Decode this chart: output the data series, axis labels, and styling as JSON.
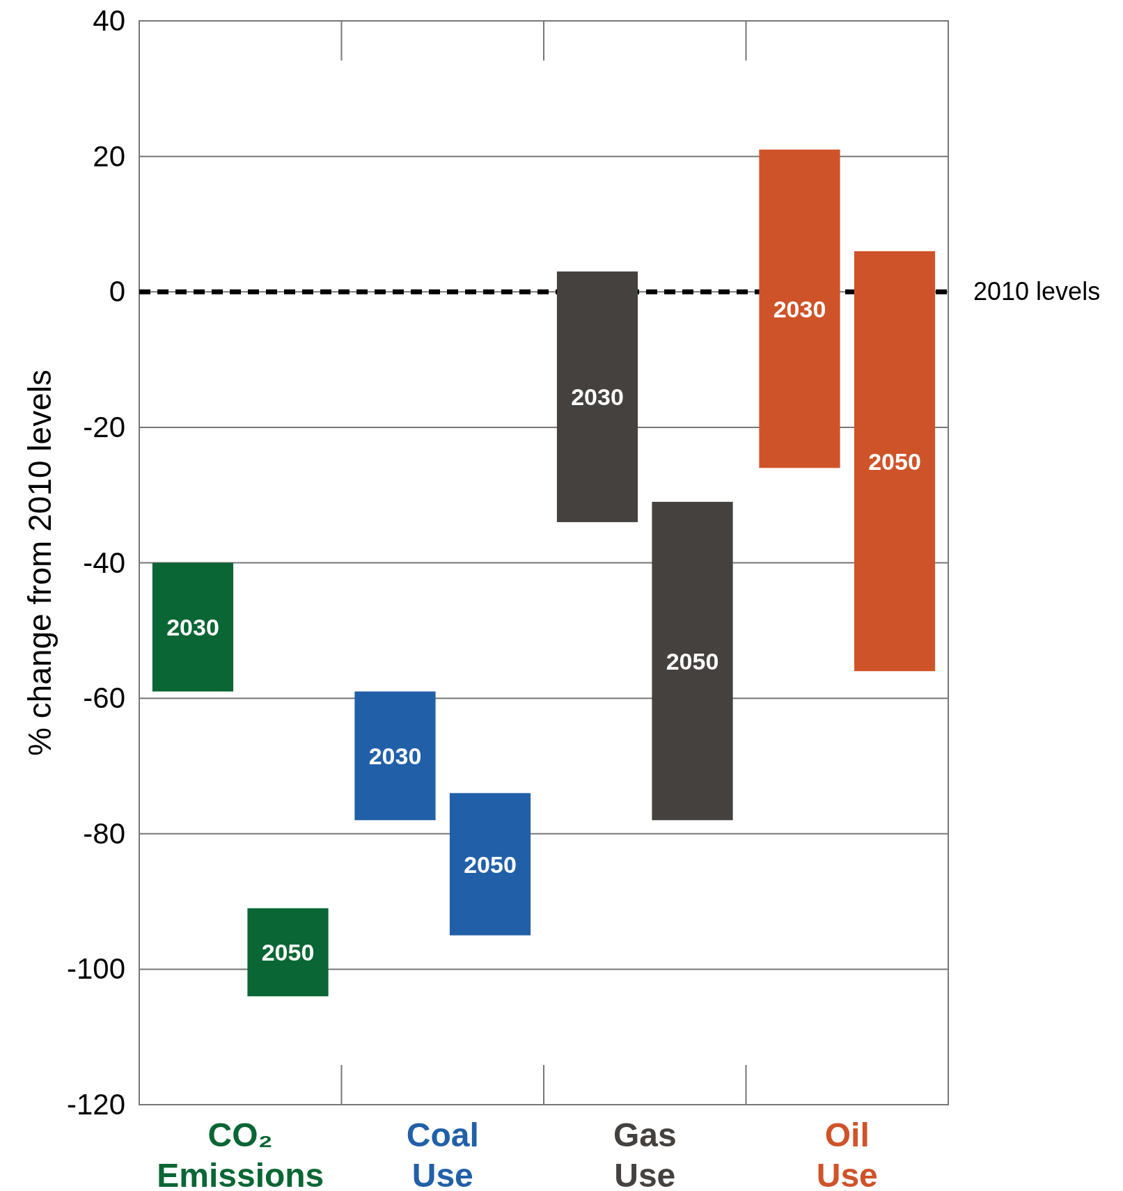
{
  "chart_data": {
    "type": "bar",
    "ylabel": "% change from 2010 levels",
    "categories": [
      "CO₂ Emissions",
      "Coal Use",
      "Gas Use",
      "Oil Use"
    ],
    "series": [
      {
        "name": "2030",
        "colors": [
          "#0a6634",
          "#2160a8",
          "#45413e",
          "#cf5329"
        ],
        "base": [
          -59,
          -78,
          -34,
          -26
        ],
        "values": [
          19,
          19,
          37,
          47
        ]
      },
      {
        "name": "2050",
        "colors": [
          "#0a6634",
          "#2160a8",
          "#45413e",
          "#cf5329"
        ],
        "base": [
          -104,
          -95,
          -78,
          -56
        ],
        "values": [
          13,
          21,
          47,
          62
        ]
      }
    ],
    "ylim": [
      -120,
      40
    ],
    "yticks": [
      -120,
      -100,
      -80,
      -60,
      -40,
      -20,
      0,
      20,
      40
    ],
    "grid": "y",
    "ref_lines": [
      {
        "axis": "y",
        "value": 0,
        "label": "2010 levels",
        "color": "#000000",
        "line_style": "dashed"
      }
    ]
  }
}
